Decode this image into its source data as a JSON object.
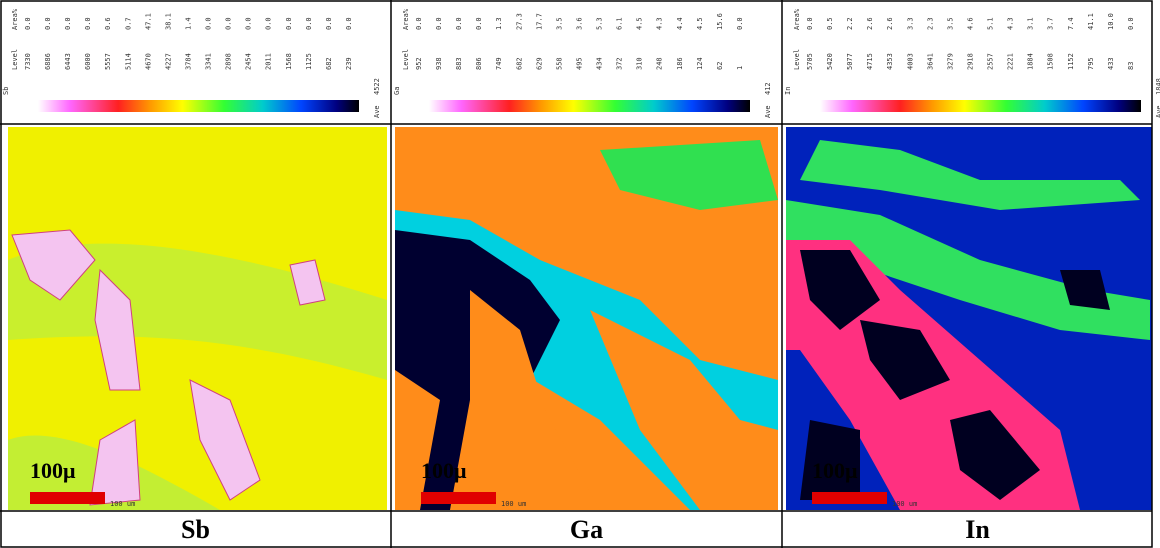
{
  "panels": [
    {
      "element": "Sb",
      "level_header": "Level",
      "area_header": "Area%",
      "levels": [
        "7330",
        "6886",
        "6443",
        "6000",
        "5557",
        "5114",
        "4670",
        "4227",
        "3784",
        "3341",
        "2898",
        "2454",
        "2011",
        "1568",
        "1125",
        "682",
        "239"
      ],
      "areas": [
        "0.0",
        "0.0",
        "0.0",
        "0.0",
        "0.6",
        "0.7",
        "47.1",
        "38.1",
        "1.4",
        "0.0",
        "0.0",
        "0.0",
        "0.0",
        "0.0",
        "0.0",
        "0.0",
        "0.0"
      ],
      "ave_label": "Ave",
      "ave": "4522",
      "scale_label": "100μ",
      "scale_small": "100 um"
    },
    {
      "element": "Ga",
      "level_header": "Level",
      "area_header": "Area%",
      "levels": [
        "952",
        "938",
        "883",
        "806",
        "749",
        "682",
        "629",
        "558",
        "495",
        "434",
        "372",
        "310",
        "248",
        "186",
        "124",
        "62",
        "1"
      ],
      "areas": [
        "0.0",
        "0.0",
        "0.0",
        "0.0",
        "1.3",
        "27.3",
        "17.7",
        "3.5",
        "3.6",
        "5.3",
        "6.1",
        "4.5",
        "4.3",
        "4.4",
        "4.5",
        "15.6",
        "0.0"
      ],
      "ave_label": "Ave",
      "ave": "412",
      "scale_label": "100μ",
      "scale_small": "100 um"
    },
    {
      "element": "In",
      "level_header": "Level",
      "area_header": "Area%",
      "levels": [
        "5705",
        "5420",
        "5077",
        "4715",
        "4353",
        "4003",
        "3641",
        "3279",
        "2918",
        "2557",
        "2221",
        "1884",
        "1508",
        "1152",
        "795",
        "433",
        "83"
      ],
      "areas": [
        "0.0",
        "0.5",
        "2.2",
        "2.6",
        "2.6",
        "3.3",
        "2.3",
        "3.5",
        "4.6",
        "5.1",
        "4.3",
        "3.1",
        "3.7",
        "7.4",
        "41.1",
        "10.0",
        "0.0"
      ],
      "ave_label": "Ave",
      "ave": "1848",
      "scale_label": "100μ",
      "scale_small": "100 um"
    }
  ]
}
